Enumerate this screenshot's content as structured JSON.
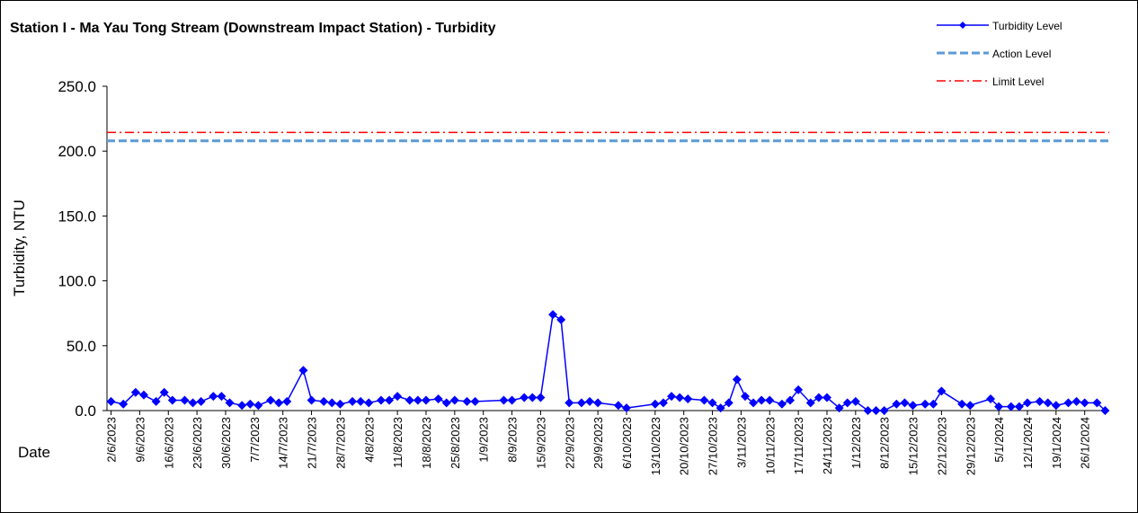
{
  "chart_data": {
    "type": "line",
    "title": "Station I - Ma Yau Tong Stream (Downstream Impact Station) - Turbidity",
    "x_label": "Date",
    "y_label": "Turbidity, NTU",
    "xlim": [
      "1/6/2023",
      "1/2/2024"
    ],
    "xticks": [
      "2/6/2023",
      "9/6/2023",
      "16/6/2023",
      "23/6/2023",
      "30/6/2023",
      "7/7/2023",
      "14/7/2023",
      "21/7/2023",
      "28/7/2023",
      "4/8/2023",
      "11/8/2023",
      "18/8/2023",
      "25/8/2023",
      "1/9/2023",
      "8/9/2023",
      "15/9/2023",
      "22/9/2023",
      "29/9/2023",
      "6/10/2023",
      "13/10/2023",
      "20/10/2023",
      "27/10/2023",
      "3/11/2023",
      "10/11/2023",
      "17/11/2023",
      "24/11/2023",
      "1/12/2023",
      "8/12/2023",
      "15/12/2023",
      "22/12/2023",
      "29/12/2023",
      "5/1/2024",
      "12/1/2024",
      "19/1/2024",
      "26/1/2024"
    ],
    "ylim": [
      0,
      250
    ],
    "yticks": [
      {
        "value": 0,
        "label": "0.0"
      },
      {
        "value": 50,
        "label": "50.0"
      },
      {
        "value": 100,
        "label": "100.0"
      },
      {
        "value": 150,
        "label": "150.0"
      },
      {
        "value": 200,
        "label": "200.0"
      },
      {
        "value": 250,
        "label": "250.0"
      }
    ],
    "x": [
      "2/6/2023",
      "5/6/2023",
      "8/6/2023",
      "10/6/2023",
      "13/6/2023",
      "15/6/2023",
      "17/6/2023",
      "20/6/2023",
      "22/6/2023",
      "24/6/2023",
      "27/6/2023",
      "29/6/2023",
      "1/7/2023",
      "4/7/2023",
      "6/7/2023",
      "8/7/2023",
      "11/7/2023",
      "13/7/2023",
      "15/7/2023",
      "19/7/2023",
      "21/7/2023",
      "24/7/2023",
      "26/7/2023",
      "28/7/2023",
      "31/7/2023",
      "2/8/2023",
      "4/8/2023",
      "7/8/2023",
      "9/8/2023",
      "11/8/2023",
      "14/8/2023",
      "16/8/2023",
      "18/8/2023",
      "21/8/2023",
      "23/8/2023",
      "25/8/2023",
      "28/8/2023",
      "30/8/2023",
      "6/9/2023",
      "8/9/2023",
      "11/9/2023",
      "13/9/2023",
      "15/9/2023",
      "18/9/2023",
      "20/9/2023",
      "22/9/2023",
      "25/9/2023",
      "27/9/2023",
      "29/9/2023",
      "4/10/2023",
      "6/10/2023",
      "13/10/2023",
      "15/10/2023",
      "17/10/2023",
      "19/10/2023",
      "21/10/2023",
      "25/10/2023",
      "27/10/2023",
      "29/10/2023",
      "31/10/2023",
      "2/11/2023",
      "4/11/2023",
      "6/11/2023",
      "8/11/2023",
      "10/11/2023",
      "13/11/2023",
      "15/11/2023",
      "17/11/2023",
      "20/11/2023",
      "22/11/2023",
      "24/11/2023",
      "27/11/2023",
      "29/11/2023",
      "1/12/2023",
      "4/12/2023",
      "6/12/2023",
      "8/12/2023",
      "11/12/2023",
      "13/12/2023",
      "15/12/2023",
      "18/12/2023",
      "20/12/2023",
      "22/12/2023",
      "27/12/2023",
      "29/12/2023",
      "3/1/2024",
      "5/1/2024",
      "8/1/2024",
      "10/1/2024",
      "12/1/2024",
      "15/1/2024",
      "17/1/2024",
      "19/1/2024",
      "22/1/2024",
      "24/1/2024",
      "26/1/2024",
      "29/1/2024",
      "31/1/2024"
    ],
    "series": [
      {
        "name": "Turbidity Level",
        "color": "#0000ff",
        "values": [
          7,
          5,
          14,
          12,
          7,
          14,
          8,
          8,
          6,
          7,
          11,
          11,
          6,
          4,
          5,
          4,
          8,
          6,
          7,
          31,
          8,
          7,
          6,
          5,
          7,
          7,
          6,
          8,
          8,
          11,
          8,
          8,
          8,
          9,
          6,
          8,
          7,
          7,
          8,
          8,
          10,
          10,
          10,
          74,
          70,
          6,
          6,
          7,
          6,
          4,
          2,
          5,
          6,
          11,
          10,
          9,
          8,
          6,
          2,
          6,
          24,
          11,
          6,
          8,
          8,
          5,
          8,
          16,
          6,
          10,
          10,
          2,
          6,
          7,
          0,
          0,
          0,
          5,
          6,
          4,
          5,
          5,
          15,
          5,
          4,
          9,
          3,
          3,
          3,
          6,
          7,
          6,
          4,
          6,
          7,
          6,
          6,
          0
        ]
      },
      {
        "name": "Action Level",
        "color": "#5b9bd5",
        "value": 207.9
      },
      {
        "name": "Limit Level",
        "color": "#ff0000",
        "value": 214.4
      }
    ]
  }
}
